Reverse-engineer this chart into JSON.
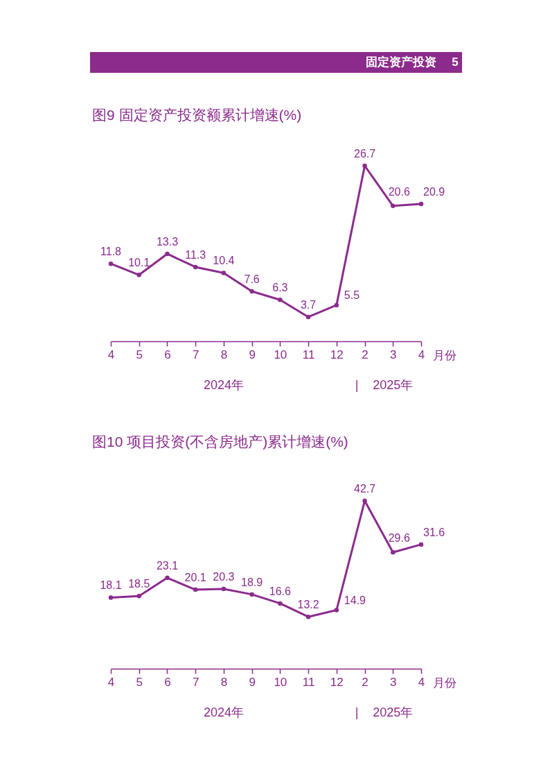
{
  "chart_data": [
    {
      "type": "other",
      "title": "固定资产投资",
      "annotations": [
        "5"
      ],
      "color": "#8b2b8b"
    },
    {
      "type": "line",
      "title": "图9  固定资产投资额累计增速(%)",
      "xlabel": "月份",
      "categories": [
        "4",
        "5",
        "6",
        "7",
        "8",
        "9",
        "10",
        "11",
        "12",
        "2",
        "3",
        "4"
      ],
      "series": [
        {
          "color": "#8b2b8d",
          "values": [
            11.8,
            10.1,
            13.3,
            11.3,
            10.4,
            7.6,
            6.3,
            3.7,
            5.5,
            26.7,
            20.6,
            20.9
          ]
        }
      ],
      "data_labels": true,
      "marker": "circle",
      "line_style": "solid",
      "tick_labels": "x",
      "annotations": [
        "2024年",
        "|",
        "2025年"
      ]
    },
    {
      "type": "line",
      "title": "图10  项目投资(不含房地产)累计增速(%)",
      "xlabel": "月份",
      "categories": [
        "4",
        "5",
        "6",
        "7",
        "8",
        "9",
        "10",
        "11",
        "12",
        "2",
        "3",
        "4"
      ],
      "series": [
        {
          "color": "#8b2b8d",
          "values": [
            18.1,
            18.5,
            23.1,
            20.1,
            20.3,
            18.9,
            16.6,
            13.2,
            14.9,
            42.7,
            29.6,
            31.6
          ]
        }
      ],
      "data_labels": true,
      "marker": "circle",
      "line_style": "solid",
      "tick_labels": "x",
      "annotations": [
        "2024年",
        "|",
        "2025年"
      ]
    }
  ]
}
